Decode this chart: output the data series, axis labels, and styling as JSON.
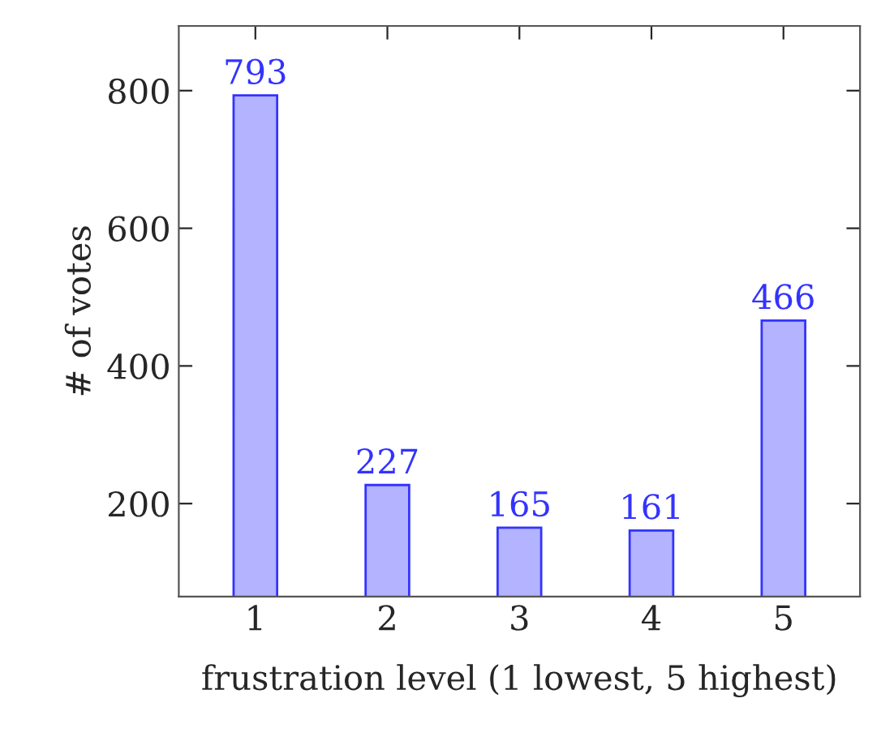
{
  "chart_data": {
    "type": "bar",
    "xlabel": "frustration level (1 lowest, 5 highest)",
    "ylabel": "# of votes",
    "x": [
      1,
      2,
      3,
      4,
      5
    ],
    "series": [
      {
        "color": "#b3b3ff",
        "values": [
          793,
          227,
          165,
          161,
          466
        ]
      }
    ],
    "xlim": [
      0.42,
      5.58
    ],
    "ylim": [
      65,
      894
    ],
    "xticks": [
      1,
      2,
      3,
      4,
      5
    ],
    "yticks": [
      200,
      400,
      600,
      800
    ],
    "data_labels": true,
    "grid": false
  }
}
